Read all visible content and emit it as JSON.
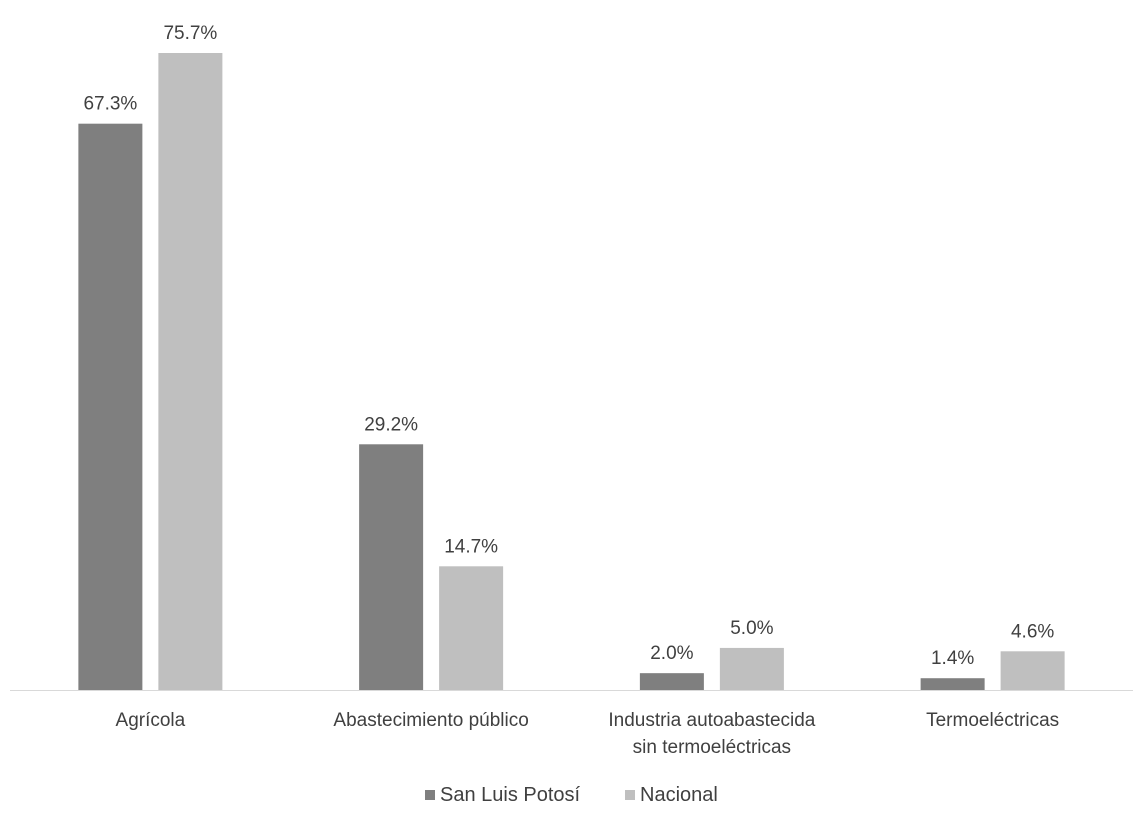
{
  "chart_data": {
    "type": "bar",
    "categories": [
      [
        "Agrícola"
      ],
      [
        "Abastecimiento público"
      ],
      [
        "Industria autoabastecida",
        "sin termoeléctricas"
      ],
      [
        "Termoeléctricas"
      ]
    ],
    "series": [
      {
        "name": "San Luis Potosí",
        "color": "#7f7f7f",
        "values": [
          67.3,
          29.2,
          2.0,
          1.4
        ],
        "labels": [
          "67.3%",
          "29.2%",
          "2.0%",
          "1.4%"
        ]
      },
      {
        "name": "Nacional",
        "color": "#bfbfbf",
        "values": [
          75.7,
          14.7,
          5.0,
          4.6
        ],
        "labels": [
          "75.7%",
          "14.7%",
          "5.0%",
          "4.6%"
        ]
      }
    ],
    "unit": "%",
    "ylim": [
      0,
      80
    ],
    "grid": false,
    "legend_position": "bottom",
    "axis_color": "#d9d9d9"
  }
}
